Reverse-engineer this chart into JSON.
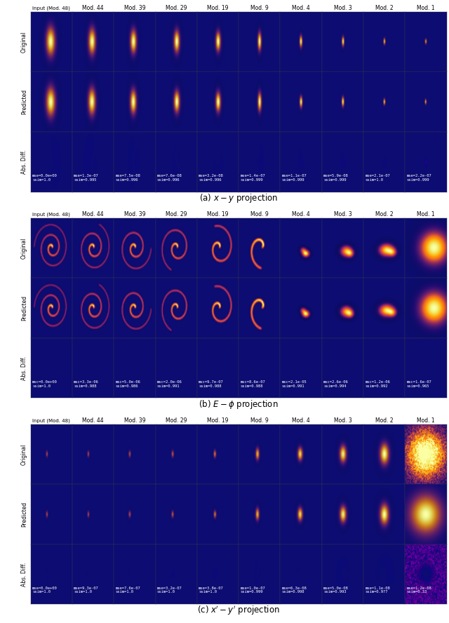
{
  "fig_width": 6.4,
  "fig_height": 8.88,
  "dpi": 100,
  "n_cols": 10,
  "col_labels": [
    "Input (Mod. 48)",
    "Mod. 44",
    "Mod. 39",
    "Mod. 29",
    "Mod. 19",
    "Mod. 9",
    "Mod. 4",
    "Mod. 3",
    "Mod. 2",
    "Mod. 1"
  ],
  "row_labels": [
    "Original",
    "Predicted",
    "Abs. Diff."
  ],
  "panel_labels": [
    "(a) $x - y$ projection",
    "(b) $E - \\phi$ projection",
    "(c) $x^{\\prime} - y^{\\prime}$ projection"
  ],
  "panel_a_diff_metrics": [
    "mse=0.0e+00\nssim=1.0",
    "mse=1.3e-07\nssim=0.995",
    "mse=7.5e-08\nssim=0.996",
    "mse=7.6e-08\nssim=0.996",
    "mse=3.2e-08\nssim=0.996",
    "mse=1.4e-07\nssim=0.999",
    "mse=1.1e-07\nssim=0.999",
    "mse=5.9e-08\nssim=0.999",
    "mse=2.1e-07\nssim=1.0",
    "mse=2.2e-07\nssim=0.999"
  ],
  "panel_b_diff_metrics": [
    "msc=0.0e+00\nssim=1.0",
    "msc=3.3e-06\nssim=0.988",
    "msc=5.0e-06\nssim=0.986",
    "msc=2.0e-06\nssim=0.991",
    "msc=9.7e-07\nssim=0.988",
    "msc=8.6e-07\nssim=0.988",
    "msc=2.1e-05\nssim=0.991",
    "msc=2.6e-06\nssim=0.994",
    "msc=1.2e-06\nssim=0.992",
    "msc=1.6e-07\nssim=0.965"
  ],
  "panel_c_diff_metrics": [
    "mse=0.0e+00\nssim=1.0",
    "mse=9.3e-07\nssim=1.0",
    "mse=7.6e-07\nssim=1.0",
    "mse=3.2e-07\nssim=1.0",
    "mse=3.8e-07\nssim=1.0",
    "mse=1.0e-07\nssim=0.999",
    "mse=6.3e-08\nssim=0.998",
    "mse=5.0e-08\nssim=0.993",
    "mse=1.1e-08\nssim=0.977",
    "mse=1.2e-08\nssim=0.33"
  ],
  "metric_fontsize": 4.0,
  "col_label_fontsize": 5.5,
  "row_label_fontsize": 5.5,
  "panel_label_fontsize": 8.5
}
